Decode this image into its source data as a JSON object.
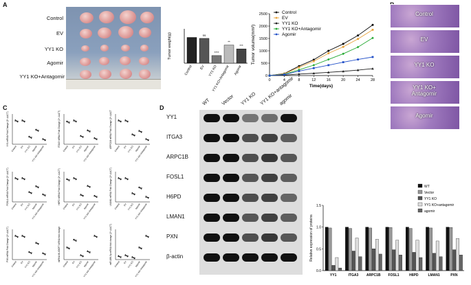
{
  "panels": {
    "a": "A",
    "b": "B",
    "c": "C",
    "d": "D"
  },
  "groups": [
    "Control",
    "EV",
    "YY1 KO",
    "Agomir",
    "YY1 KO+Antagomir"
  ],
  "histology_labels": [
    "Control",
    "EV",
    "YY1 KO",
    "YY1 KO+\nAntagomir",
    "Agomir"
  ],
  "chart_data": [
    {
      "type": "bar",
      "ylabel": "Tumor weight(g)",
      "categories": [
        "Control",
        "EV",
        "YY1 KO",
        "YY1 KO+Antagomir",
        "Agomir"
      ],
      "values": [
        1.35,
        1.3,
        0.4,
        0.95,
        0.75
      ],
      "sig": [
        "",
        "ns",
        "****",
        "**",
        "***"
      ]
    },
    {
      "type": "line",
      "xlabel": "Time(days)",
      "ylabel": "Tumor volume(mm³)",
      "x": [
        0,
        4,
        8,
        12,
        16,
        20,
        24,
        28
      ],
      "ylim": [
        0,
        2500
      ],
      "yticks": [
        0,
        500,
        1000,
        1500,
        2000,
        2500
      ],
      "series": [
        {
          "name": "Control",
          "values": [
            0,
            80,
            380,
            640,
            1000,
            1280,
            1620,
            2050
          ]
        },
        {
          "name": "EV",
          "values": [
            0,
            70,
            330,
            580,
            900,
            1160,
            1480,
            1850
          ]
        },
        {
          "name": "YY1 KO",
          "values": [
            0,
            20,
            60,
            90,
            130,
            170,
            220,
            280
          ]
        },
        {
          "name": "YY1 KO+Antagomir",
          "values": [
            0,
            50,
            230,
            420,
            650,
            880,
            1150,
            1520
          ]
        },
        {
          "name": "Agomir",
          "values": [
            0,
            40,
            180,
            300,
            420,
            540,
            650,
            750
          ]
        }
      ]
    },
    {
      "type": "bar",
      "ylabel": "Relative expression of proteins",
      "categories": [
        "YY1",
        "ITGA3",
        "ARPC1B",
        "FOSL1",
        "H6PD",
        "LMAN1",
        "PXN"
      ],
      "series": [
        {
          "name": "WT",
          "values": [
            1.0,
            1.0,
            1.0,
            1.0,
            1.0,
            1.0,
            1.0
          ]
        },
        {
          "name": "Vector",
          "values": [
            0.98,
            0.97,
            0.98,
            0.99,
            0.97,
            0.98,
            0.99
          ]
        },
        {
          "name": "YY1 KO",
          "values": [
            0.12,
            0.45,
            0.5,
            0.48,
            0.42,
            0.4,
            0.48
          ]
        },
        {
          "name": "YY1 KO+antagomir",
          "values": [
            0.3,
            0.75,
            0.72,
            0.7,
            0.7,
            0.68,
            0.74
          ]
        },
        {
          "name": "agomir",
          "values": [
            0.06,
            0.32,
            0.38,
            0.36,
            0.3,
            0.32,
            0.36
          ]
        }
      ],
      "ylim": [
        0,
        1.5
      ]
    }
  ],
  "qpcr_ylabels": [
    "YY1 mRNA Fold Change\n(2^-ΔΔCT)",
    "ITGA3 mRNA Fold Change\n(2^-ΔΔCT)",
    "ARPC1B mRNA Fold Change\n(2^-ΔΔCT)",
    "FOSL1 mRNA Fold Change\n(2^-ΔΔCT)",
    "H6PD mRNA Fold Change\n(2^-ΔΔCT)",
    "LMAN1 mRNA Fold Change\n(2^-ΔΔCT)",
    "PXN mRNA Fold Change\n(2^-ΔΔCT)",
    "miRNA MLIOOF7\nmRNA fold change",
    "miR-186-3p\nmRNA fold change\n(2^-ΔΔCT)"
  ],
  "blot": {
    "lanes": [
      "WT",
      "Vector",
      "YY1 KO",
      "YY1 KO+antagomir",
      "agomir"
    ],
    "proteins": [
      "YY1",
      "ITGA3",
      "ARPC1B",
      "FOSL1",
      "H6PD",
      "LMAN1",
      "PXN",
      "β-actin"
    ]
  }
}
